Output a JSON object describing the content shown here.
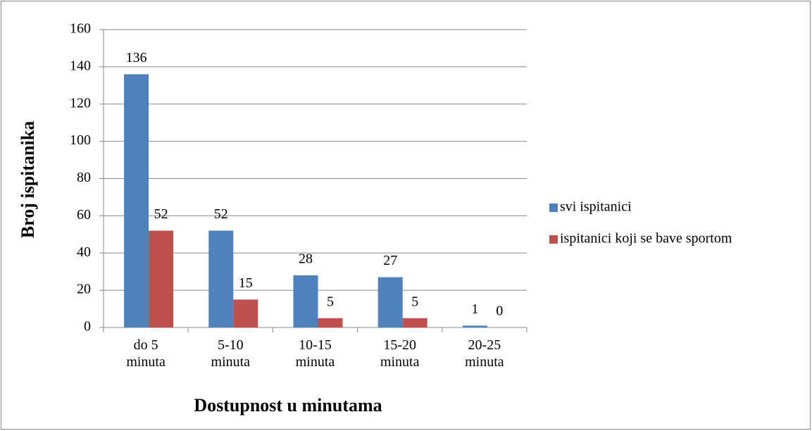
{
  "chart_data": {
    "type": "bar",
    "x_label": "Dostupnost u minutama",
    "y_label": "Broj ispitanika",
    "categories": [
      "do 5 minuta",
      "5-10 minuta",
      "10-15 minuta",
      "15-20 minuta",
      "20-25 minuta"
    ],
    "series": [
      {
        "name": "svi ispitanici",
        "color": "#4f81bd",
        "values": [
          136,
          52,
          28,
          27,
          1
        ]
      },
      {
        "name": "ispitanici koji se bave sportom",
        "color": "#c0504d",
        "values": [
          52,
          15,
          5,
          5,
          0
        ]
      }
    ],
    "ylim": [
      0,
      160
    ],
    "yticks": [
      0,
      20,
      40,
      60,
      80,
      100,
      120,
      140,
      160
    ],
    "grid": true,
    "legend": "right"
  }
}
